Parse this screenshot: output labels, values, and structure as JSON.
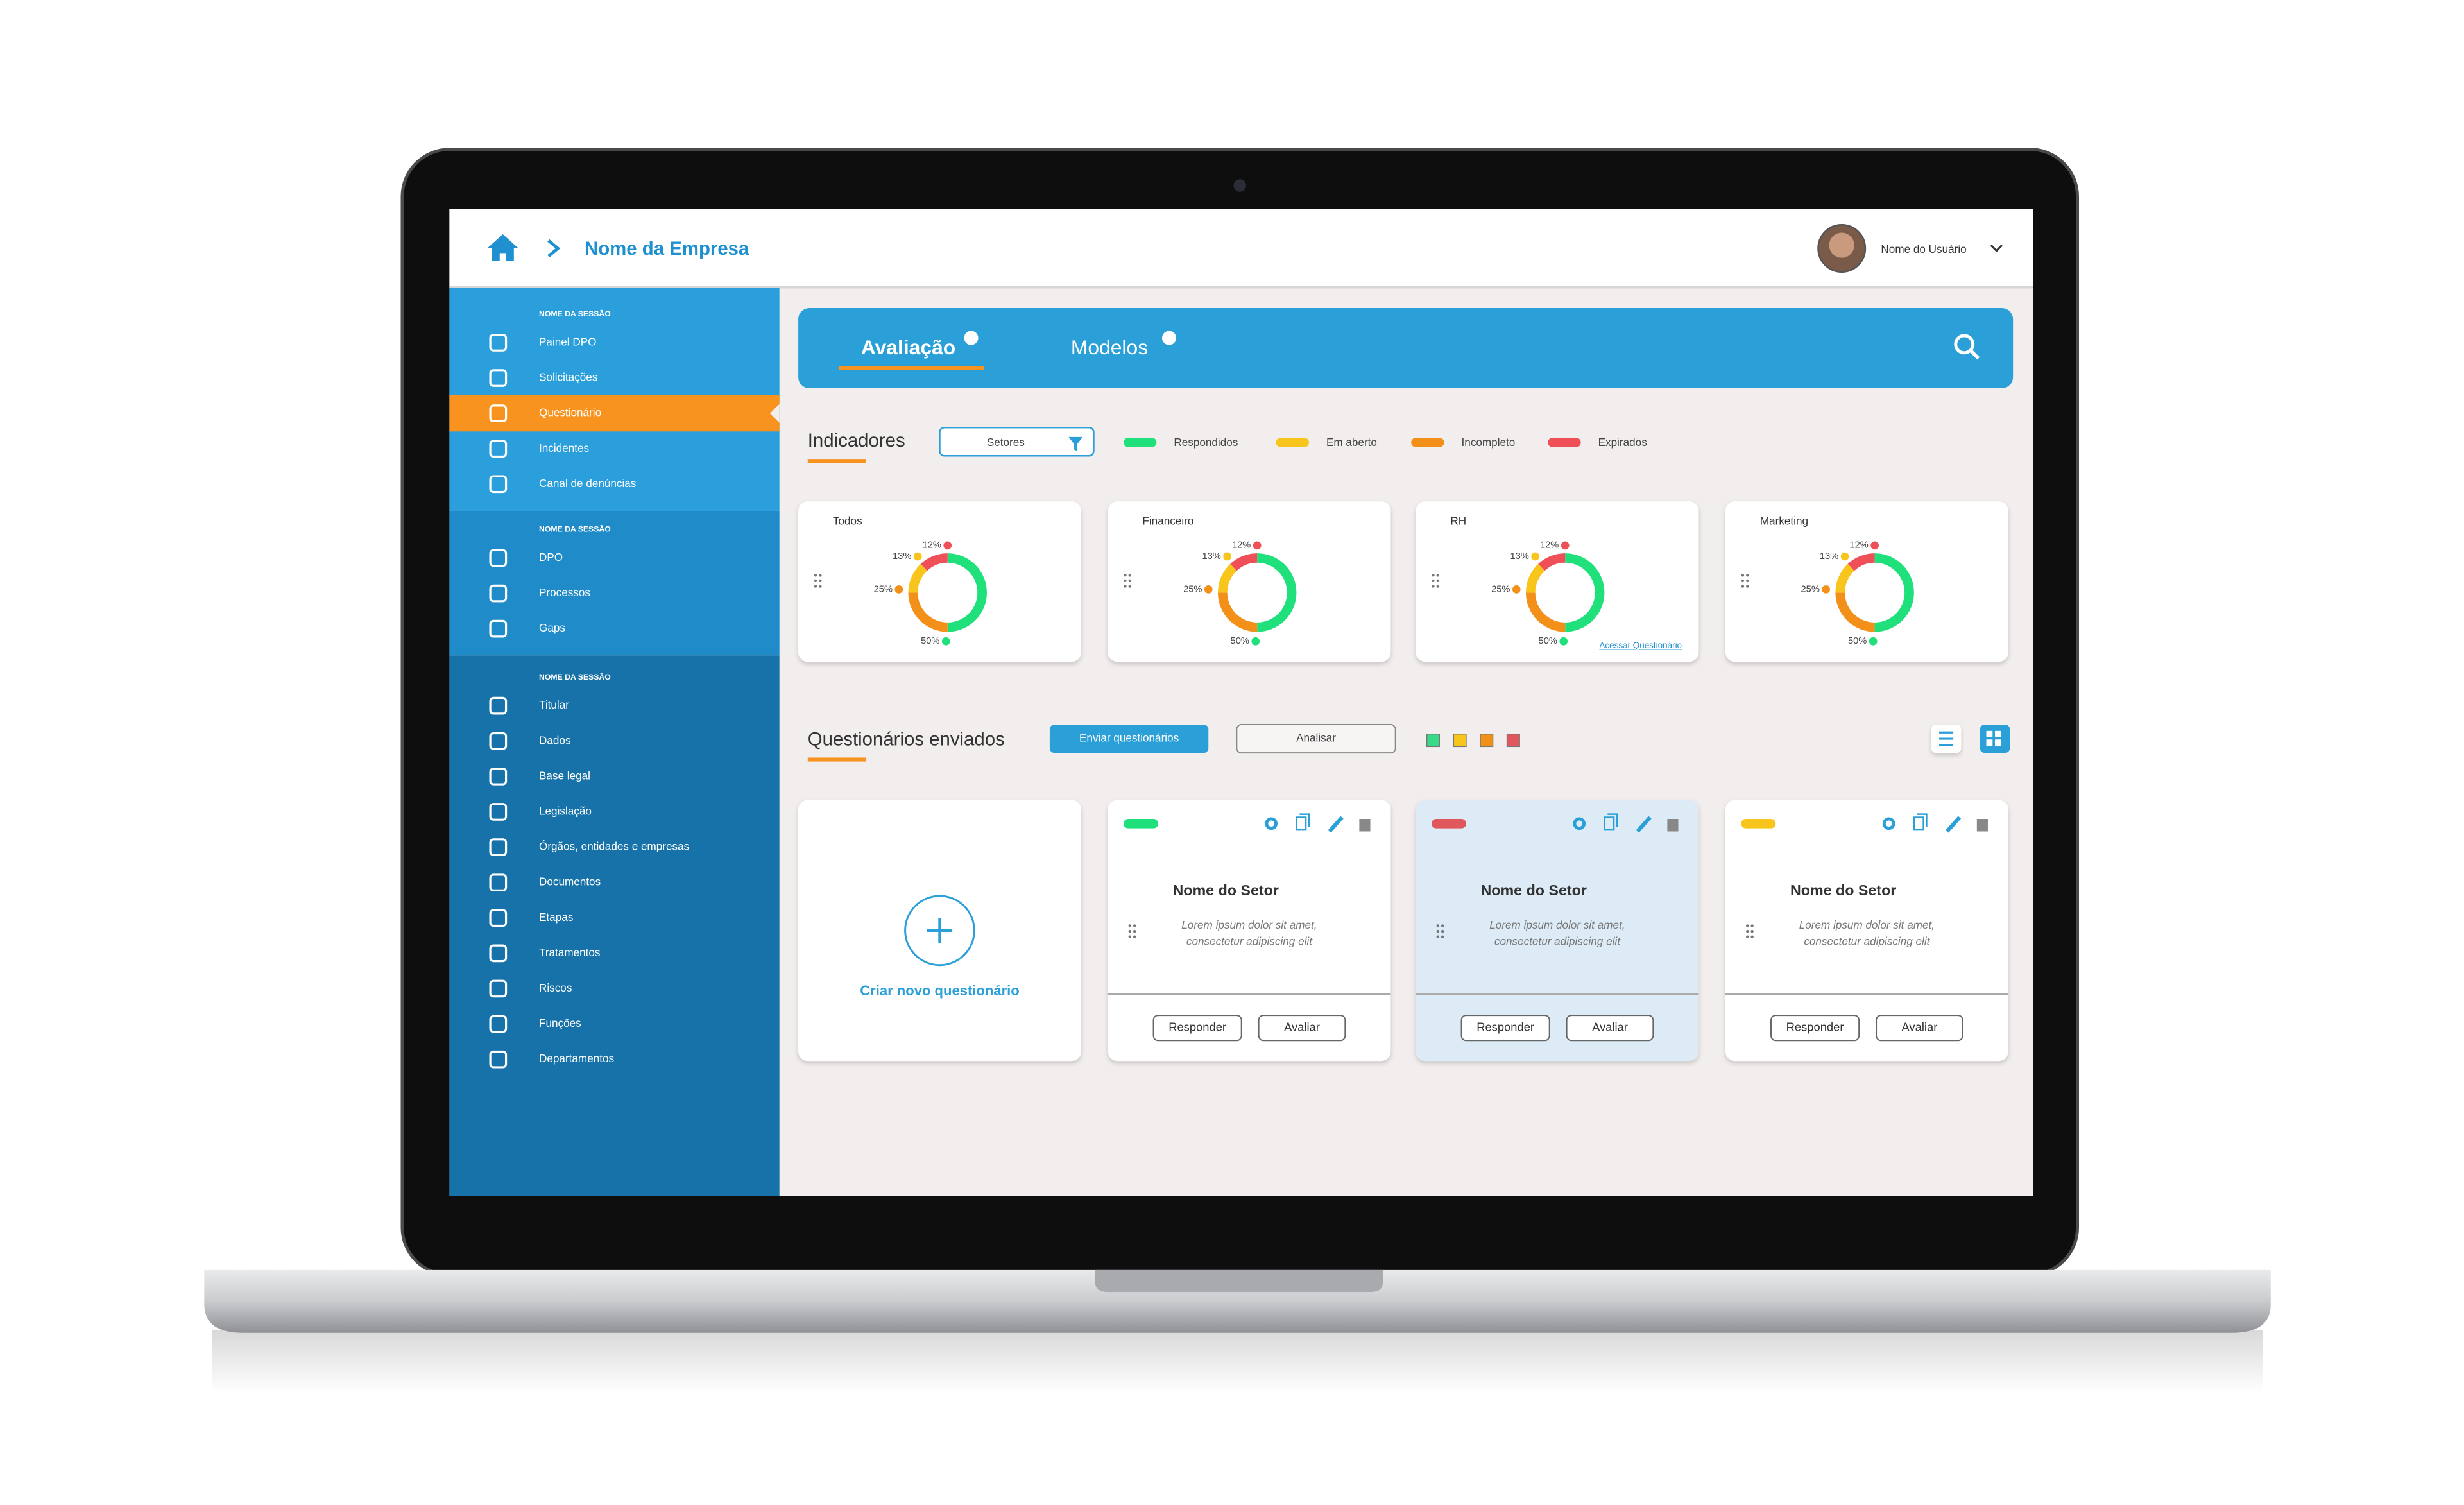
{
  "header": {
    "company": "Nome da Empresa",
    "user": "Nome do Usuário"
  },
  "sidebar": {
    "active_item": "Questionário",
    "sections": [
      {
        "label": "NOME DA SESSÃO",
        "items": [
          "Painel DPO",
          "Solicitações",
          "Questionário",
          "Incidentes",
          "Canal de denúncias"
        ]
      },
      {
        "label": "NOME DA SESSÃO",
        "items": [
          "DPO",
          "Processos",
          "Gaps"
        ]
      },
      {
        "label": "NOME DA SESSÃO",
        "items": [
          "Titular",
          "Dados",
          "Base legal",
          "Legislação",
          "Órgãos, entidades e empresas",
          "Documentos",
          "Etapas",
          "Tratamentos",
          "Riscos",
          "Funções",
          "Departamentos"
        ]
      }
    ]
  },
  "tabs": [
    "Avaliação",
    "Modelos"
  ],
  "indicators": {
    "title": "Indicadores",
    "filter": "Setores",
    "legend": [
      {
        "name": "Respondidos",
        "color": "#1fe07a"
      },
      {
        "name": "Em aberto",
        "color": "#f7c51b"
      },
      {
        "name": "Incompleto",
        "color": "#f39019"
      },
      {
        "name": "Expirados",
        "color": "#ef4f57"
      }
    ],
    "cards": [
      {
        "label": "Todos",
        "values": [
          50,
          13,
          25,
          12
        ],
        "value_labels": [
          "50%",
          "13%",
          "25%",
          "12%"
        ]
      },
      {
        "label": "Financeiro",
        "values": [
          50,
          13,
          25,
          12
        ],
        "value_labels": [
          "50%",
          "13%",
          "25%",
          "12%"
        ]
      },
      {
        "label": "RH",
        "values": [
          50,
          13,
          25,
          12
        ],
        "value_labels": [
          "50%",
          "13%",
          "25%",
          "12%"
        ],
        "link": "Acessar Questionário"
      },
      {
        "label": "Marketing",
        "values": [
          50,
          13,
          25,
          12
        ],
        "value_labels": [
          "50%",
          "13%",
          "25%",
          "12%"
        ]
      }
    ]
  },
  "sent": {
    "title": "Questionários enviados",
    "primary_button": "Enviar questionários",
    "secondary_button": "Analisar",
    "create": "Criar novo questionário",
    "cards": [
      {
        "title": "Nome do Setor",
        "text": [
          "Lorem ipsum dolor sit amet,",
          "consectetur adipiscing elit"
        ],
        "status_color": "#1fe07a",
        "highlighted": false,
        "actions": [
          "Responder",
          "Avaliar"
        ]
      },
      {
        "title": "Nome do Setor",
        "text": [
          "Lorem ipsum dolor sit amet,",
          "consectetur adipiscing elit"
        ],
        "status_color": "#e0575d",
        "highlighted": true,
        "actions": [
          "Responder",
          "Avaliar"
        ]
      },
      {
        "title": "Nome do Setor",
        "text": [
          "Lorem ipsum dolor sit amet,",
          "consectetur adipiscing elit"
        ],
        "status_color": "#f7c51b",
        "highlighted": false,
        "actions": [
          "Responder",
          "Avaliar"
        ]
      }
    ]
  }
}
